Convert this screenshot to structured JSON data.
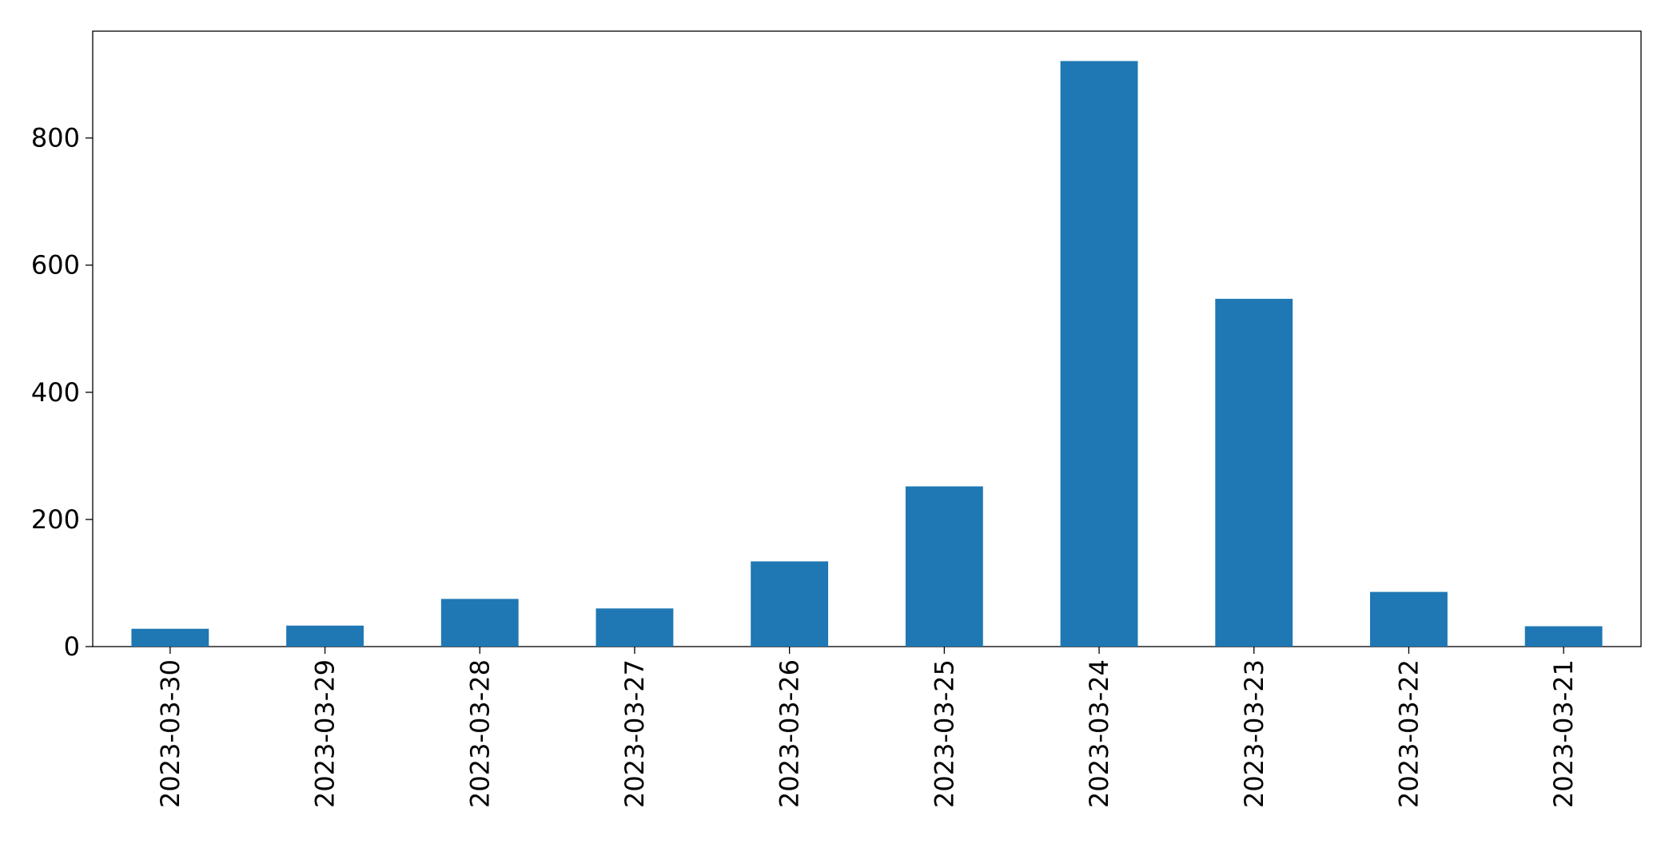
{
  "chart_data": {
    "type": "bar",
    "categories": [
      "2023-03-30",
      "2023-03-29",
      "2023-03-28",
      "2023-03-27",
      "2023-03-26",
      "2023-03-25",
      "2023-03-24",
      "2023-03-23",
      "2023-03-22",
      "2023-03-21"
    ],
    "values": [
      28,
      33,
      75,
      60,
      134,
      252,
      921,
      547,
      86,
      32
    ],
    "color": "#1f77b4",
    "ylim": [
      0,
      968
    ],
    "yticks": [
      0,
      200,
      400,
      600,
      800
    ],
    "grid": false
  }
}
